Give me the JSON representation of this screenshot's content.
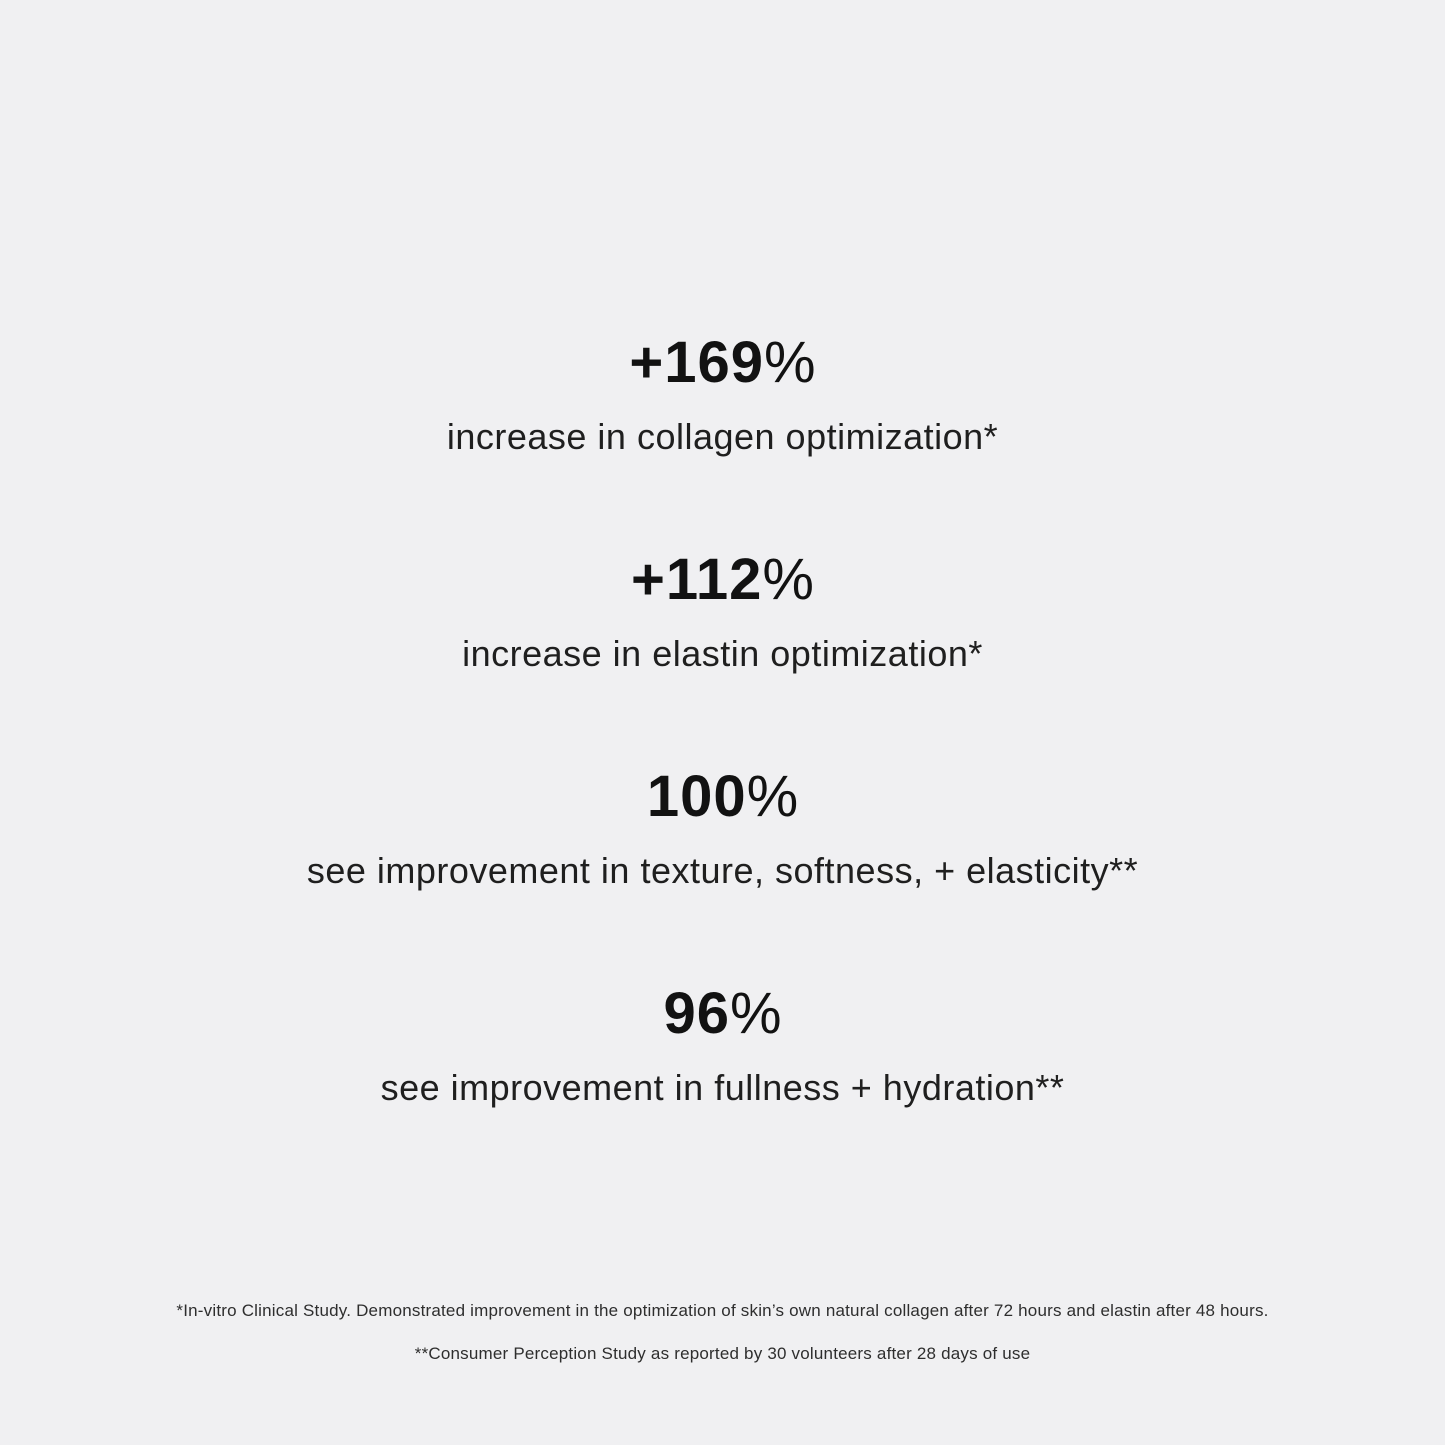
{
  "panel": {
    "background": "#f0f0f2",
    "number_color": "#121212",
    "label_color": "#1f1f1f",
    "footnote_color": "#2e2e2e"
  },
  "stats": [
    {
      "number": "+169",
      "percent": "%",
      "label": "increase in collagen optimization*"
    },
    {
      "number": "+112",
      "percent": "%",
      "label": "increase in elastin optimization*"
    },
    {
      "number": "100",
      "percent": "%",
      "label": "see improvement in texture, softness, + elasticity**"
    },
    {
      "number": "96",
      "percent": "%",
      "label": "see improvement in fullness + hydration**"
    }
  ],
  "footnotes": [
    "*In-vitro Clinical Study. Demonstrated improvement in the optimization of skin’s own natural collagen after 72 hours and elastin after 48 hours.",
    "**Consumer Perception Study as reported by 30 volunteers after 28 days of use"
  ]
}
